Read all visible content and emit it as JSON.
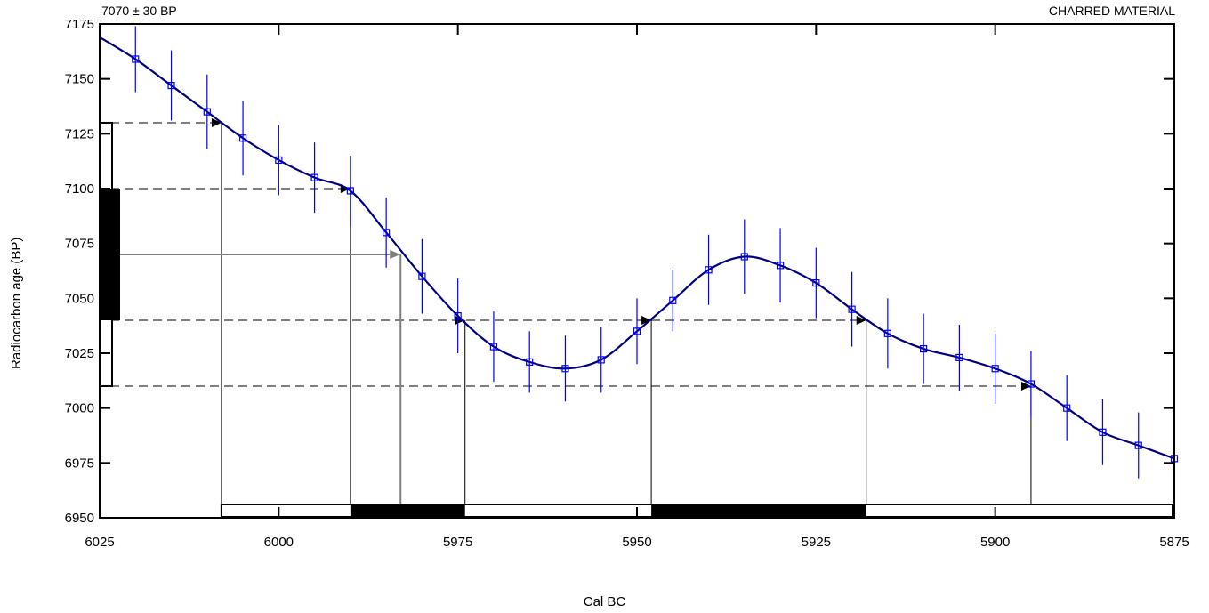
{
  "chart_data": {
    "type": "line",
    "title": "",
    "xlabel": "Cal BC",
    "ylabel": "Radiocarbon age (BP)",
    "annotation_left": "7070 ± 30 BP",
    "annotation_right": "CHARRED MATERIAL",
    "xlim": [
      6025,
      5875
    ],
    "ylim": [
      6950,
      7175
    ],
    "xticks": [
      6025,
      6000,
      5975,
      5950,
      5925,
      5900,
      5875
    ],
    "yticks": [
      6950,
      6975,
      7000,
      7025,
      7050,
      7075,
      7100,
      7125,
      7150,
      7175
    ],
    "calibration_curve": {
      "x": [
        6025,
        6020,
        6015,
        6010,
        6005,
        6000,
        5995,
        5990,
        5985,
        5980,
        5975,
        5970,
        5965,
        5960,
        5955,
        5950,
        5945,
        5940,
        5935,
        5930,
        5925,
        5920,
        5915,
        5910,
        5905,
        5900,
        5895,
        5890,
        5885,
        5880,
        5875
      ],
      "y": [
        7169,
        7159,
        7147,
        7135,
        7123,
        7113,
        7105,
        7099,
        7080,
        7060,
        7042,
        7028,
        7021,
        7018,
        7022,
        7035,
        7049,
        7063,
        7069,
        7065,
        7057,
        7045,
        7034,
        7027,
        7023,
        7018,
        7011,
        7000,
        6989,
        6983,
        6977
      ]
    },
    "data_points": {
      "x": [
        6020,
        6015,
        6010,
        6005,
        6000,
        5995,
        5990,
        5985,
        5980,
        5975,
        5970,
        5965,
        5960,
        5955,
        5950,
        5945,
        5940,
        5935,
        5930,
        5925,
        5920,
        5915,
        5910,
        5905,
        5900,
        5895,
        5890,
        5885,
        5880,
        5875
      ],
      "y": [
        7159,
        7147,
        7135,
        7123,
        7113,
        7105,
        7099,
        7080,
        7060,
        7042,
        7028,
        7021,
        7018,
        7022,
        7035,
        7049,
        7063,
        7069,
        7065,
        7057,
        7045,
        7034,
        7027,
        7023,
        7018,
        7011,
        7000,
        6989,
        6983,
        6977
      ],
      "error": [
        15,
        16,
        17,
        17,
        16,
        16,
        16,
        16,
        17,
        17,
        16,
        14,
        15,
        15,
        15,
        14,
        16,
        17,
        17,
        16,
        17,
        16,
        16,
        15,
        16,
        15,
        15,
        15,
        15,
        0
      ]
    },
    "sample_age": 7070,
    "sigma1_range": [
      7040,
      7100
    ],
    "sigma2_range": [
      7010,
      7130
    ],
    "sigma1_cal_ranges": [
      [
        5990,
        5974
      ],
      [
        5948,
        5918
      ]
    ],
    "sigma2_cal_ranges": [
      [
        6008,
        5874.5
      ]
    ],
    "sigma2_boundaries": [
      6008,
      5990,
      5974,
      5948,
      5918,
      5895
    ],
    "intercept_x": 5983,
    "colors": {
      "curve": "#000080",
      "points": "#0000ff",
      "intercept": "#808080",
      "fill": "#000000"
    }
  }
}
